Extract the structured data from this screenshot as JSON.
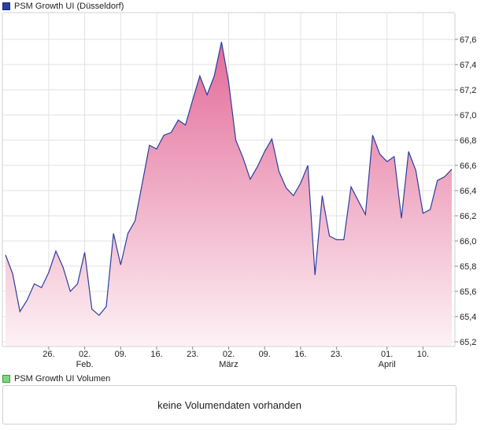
{
  "legend": {
    "price_label": "PSM Growth UI (Düsseldorf)",
    "volume_label": "PSM Growth UI Volumen"
  },
  "volume_message": "keine Volumendaten vorhanden",
  "colors": {
    "line": "#2a3fa0",
    "fill_top": "#e36b98",
    "fill_bottom": "#fdf1f5",
    "grid": "#e2e2e2"
  },
  "chart_data": {
    "type": "area",
    "title": "PSM Growth UI (Düsseldorf)",
    "ylim": [
      65.2,
      67.8
    ],
    "y_ticks": [
      "65,2",
      "65,4",
      "65,6",
      "65,8",
      "66,0",
      "66,2",
      "66,4",
      "66,6",
      "66,8",
      "67,0",
      "67,2",
      "67,4",
      "67,6"
    ],
    "y_tick_values": [
      65.2,
      65.4,
      65.6,
      65.8,
      66.0,
      66.2,
      66.4,
      66.6,
      66.8,
      67.0,
      67.2,
      67.4,
      67.6
    ],
    "x_ticks": [
      {
        "label": "26.",
        "sub": "",
        "index": 6
      },
      {
        "label": "02.",
        "sub": "Feb.",
        "index": 11
      },
      {
        "label": "09.",
        "sub": "",
        "index": 16
      },
      {
        "label": "16.",
        "sub": "",
        "index": 21
      },
      {
        "label": "23.",
        "sub": "",
        "index": 26
      },
      {
        "label": "02.",
        "sub": "März",
        "index": 31
      },
      {
        "label": "09.",
        "sub": "",
        "index": 36
      },
      {
        "label": "16.",
        "sub": "",
        "index": 41
      },
      {
        "label": "23.",
        "sub": "",
        "index": 46
      },
      {
        "label": "01.",
        "sub": "April",
        "index": 53
      },
      {
        "label": "10.",
        "sub": "",
        "index": 58
      }
    ],
    "values": [
      65.89,
      65.74,
      65.44,
      65.53,
      65.66,
      65.63,
      65.75,
      65.92,
      65.79,
      65.6,
      65.66,
      65.91,
      65.46,
      65.41,
      65.48,
      66.06,
      65.81,
      66.06,
      66.16,
      66.46,
      66.76,
      66.73,
      66.84,
      66.86,
      66.96,
      66.92,
      67.12,
      67.31,
      67.16,
      67.31,
      67.58,
      67.26,
      66.8,
      66.66,
      66.49,
      66.59,
      66.71,
      66.81,
      66.55,
      66.42,
      66.36,
      66.46,
      66.6,
      65.73,
      66.36,
      66.04,
      66.01,
      66.01,
      66.43,
      66.32,
      66.21,
      66.84,
      66.69,
      66.63,
      66.67,
      66.18,
      66.71,
      66.56,
      66.22,
      66.25,
      66.48,
      66.51,
      66.57
    ]
  }
}
